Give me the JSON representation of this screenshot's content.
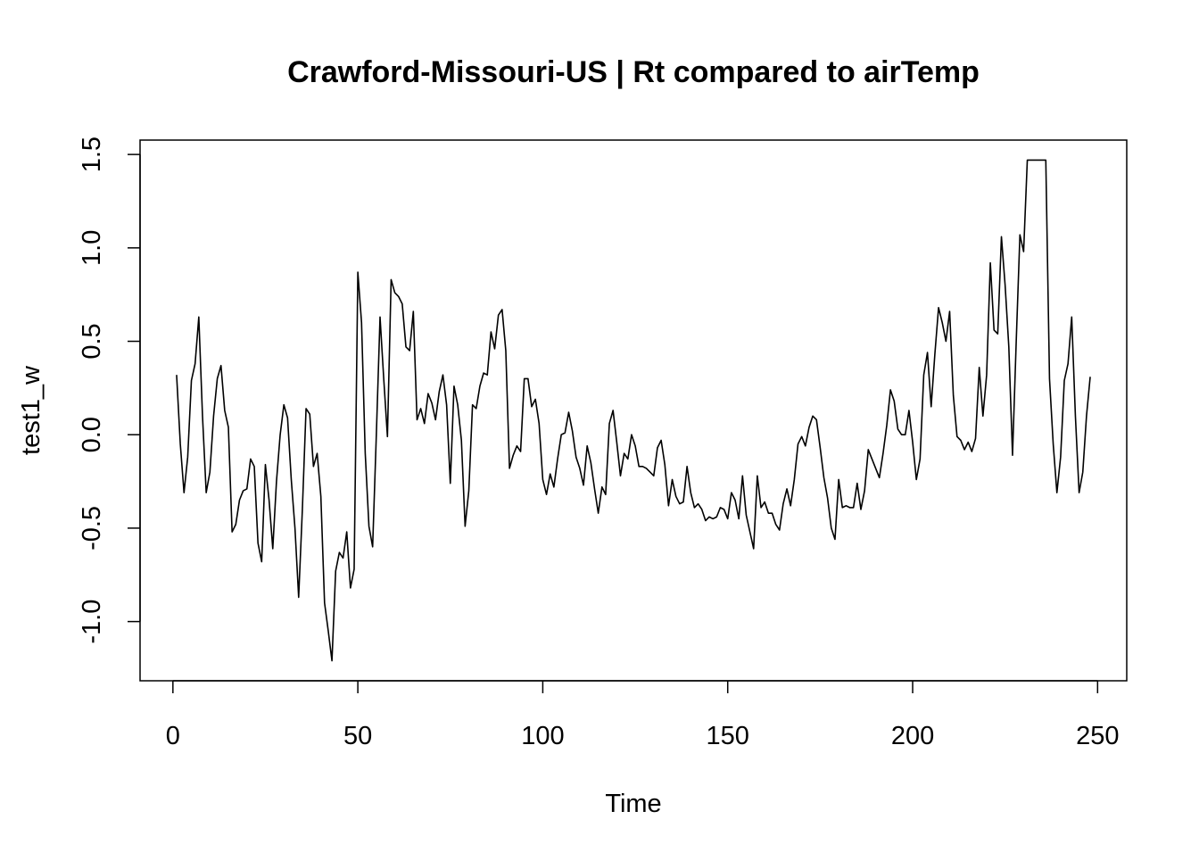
{
  "chart_data": {
    "type": "line",
    "title": "Crawford-Missouri-US | Rt compared to airTemp",
    "x_label": "Time",
    "y_label": "test1_w",
    "xlim": [
      -8.88,
      257.88
    ],
    "ylim": [
      -1.317,
      1.577
    ],
    "xticks": [
      0,
      50,
      100,
      150,
      200,
      250
    ],
    "yticks": [
      {
        "value": -1.0,
        "label": "-1.0"
      },
      -0.5,
      {
        "value": 0.0,
        "label": "0.0"
      },
      0.5,
      {
        "value": 1.0,
        "label": "1.0"
      },
      1.5
    ],
    "color": "#000000",
    "x": [
      1,
      2,
      3,
      4,
      5,
      6,
      7,
      8,
      9,
      10,
      11,
      12,
      13,
      14,
      15,
      16,
      17,
      18,
      19,
      20,
      21,
      22,
      23,
      24,
      25,
      26,
      27,
      28,
      29,
      30,
      31,
      32,
      33,
      34,
      35,
      36,
      37,
      38,
      39,
      40,
      41,
      42,
      43,
      44,
      45,
      46,
      47,
      48,
      49,
      50,
      51,
      52,
      53,
      54,
      55,
      56,
      57,
      58,
      59,
      60,
      61,
      62,
      63,
      64,
      65,
      66,
      67,
      68,
      69,
      70,
      71,
      72,
      73,
      74,
      75,
      76,
      77,
      78,
      79,
      80,
      81,
      82,
      83,
      84,
      85,
      86,
      87,
      88,
      89,
      90,
      91,
      92,
      93,
      94,
      95,
      96,
      97,
      98,
      99,
      100,
      101,
      102,
      103,
      104,
      105,
      106,
      107,
      108,
      109,
      110,
      111,
      112,
      113,
      114,
      115,
      116,
      117,
      118,
      119,
      120,
      121,
      122,
      123,
      124,
      125,
      126,
      127,
      128,
      129,
      130,
      131,
      132,
      133,
      134,
      135,
      136,
      137,
      138,
      139,
      140,
      141,
      142,
      143,
      144,
      145,
      146,
      147,
      148,
      149,
      150,
      151,
      152,
      153,
      154,
      155,
      156,
      157,
      158,
      159,
      160,
      161,
      162,
      163,
      164,
      165,
      166,
      167,
      168,
      169,
      170,
      171,
      172,
      173,
      174,
      175,
      176,
      177,
      178,
      179,
      180,
      181,
      182,
      183,
      184,
      185,
      186,
      187,
      188,
      189,
      190,
      191,
      192,
      193,
      194,
      195,
      196,
      197,
      198,
      199,
      200,
      201,
      202,
      203,
      204,
      205,
      206,
      207,
      208,
      209,
      210,
      211,
      212,
      213,
      214,
      215,
      216,
      217,
      218,
      219,
      220,
      221,
      222,
      223,
      224,
      225,
      226,
      227,
      228,
      229,
      230,
      231,
      232,
      233,
      234,
      235,
      236,
      237,
      238,
      239,
      240,
      241,
      242,
      243,
      244,
      245,
      246,
      247,
      248
    ],
    "values": [
      0.32,
      -0.05,
      -0.31,
      -0.12,
      0.29,
      0.38,
      0.63,
      0.1,
      -0.31,
      -0.2,
      0.1,
      0.3,
      0.37,
      0.13,
      0.04,
      -0.52,
      -0.48,
      -0.35,
      -0.3,
      -0.29,
      -0.13,
      -0.17,
      -0.58,
      -0.68,
      -0.16,
      -0.35,
      -0.61,
      -0.25,
      0.0,
      0.16,
      0.09,
      -0.24,
      -0.5,
      -0.87,
      -0.4,
      0.14,
      0.11,
      -0.17,
      -0.1,
      -0.33,
      -0.9,
      -1.05,
      -1.21,
      -0.73,
      -0.63,
      -0.66,
      -0.52,
      -0.82,
      -0.72,
      0.87,
      0.6,
      -0.1,
      -0.49,
      -0.6,
      0.0,
      0.63,
      0.3,
      -0.01,
      0.83,
      0.76,
      0.74,
      0.7,
      0.47,
      0.45,
      0.66,
      0.08,
      0.14,
      0.06,
      0.22,
      0.17,
      0.08,
      0.23,
      0.32,
      0.16,
      -0.26,
      0.26,
      0.16,
      -0.03,
      -0.49,
      -0.3,
      0.16,
      0.14,
      0.26,
      0.33,
      0.32,
      0.55,
      0.46,
      0.64,
      0.67,
      0.45,
      -0.18,
      -0.11,
      -0.06,
      -0.09,
      0.3,
      0.3,
      0.15,
      0.19,
      0.06,
      -0.24,
      -0.32,
      -0.21,
      -0.28,
      -0.13,
      0.0,
      0.01,
      0.12,
      0.02,
      -0.12,
      -0.18,
      -0.27,
      -0.06,
      -0.15,
      -0.29,
      -0.42,
      -0.28,
      -0.32,
      0.06,
      0.13,
      -0.04,
      -0.22,
      -0.1,
      -0.13,
      0.0,
      -0.06,
      -0.17,
      -0.17,
      -0.18,
      -0.2,
      -0.22,
      -0.07,
      -0.03,
      -0.16,
      -0.38,
      -0.24,
      -0.33,
      -0.37,
      -0.36,
      -0.17,
      -0.31,
      -0.39,
      -0.37,
      -0.4,
      -0.46,
      -0.44,
      -0.45,
      -0.44,
      -0.39,
      -0.4,
      -0.45,
      -0.31,
      -0.35,
      -0.45,
      -0.22,
      -0.43,
      -0.52,
      -0.61,
      -0.22,
      -0.39,
      -0.36,
      -0.42,
      -0.42,
      -0.48,
      -0.51,
      -0.37,
      -0.29,
      -0.38,
      -0.24,
      -0.05,
      -0.01,
      -0.06,
      0.04,
      0.1,
      0.08,
      -0.07,
      -0.23,
      -0.34,
      -0.5,
      -0.56,
      -0.24,
      -0.39,
      -0.38,
      -0.39,
      -0.39,
      -0.26,
      -0.4,
      -0.3,
      -0.08,
      -0.13,
      -0.18,
      -0.23,
      -0.1,
      0.05,
      0.24,
      0.18,
      0.03,
      0.0,
      0.0,
      0.13,
      -0.04,
      -0.24,
      -0.13,
      0.32,
      0.44,
      0.15,
      0.43,
      0.68,
      0.6,
      0.5,
      0.66,
      0.21,
      -0.01,
      -0.03,
      -0.08,
      -0.04,
      -0.09,
      -0.02,
      0.36,
      0.1,
      0.32,
      0.92,
      0.56,
      0.54,
      1.06,
      0.8,
      0.47,
      -0.11,
      0.5,
      1.07,
      0.98,
      1.47,
      1.47,
      1.47,
      1.47,
      1.47,
      1.47,
      0.3,
      -0.05,
      -0.31,
      -0.12,
      0.29,
      0.38,
      0.63,
      0.1,
      -0.31,
      -0.2,
      0.1,
      0.31
    ]
  }
}
